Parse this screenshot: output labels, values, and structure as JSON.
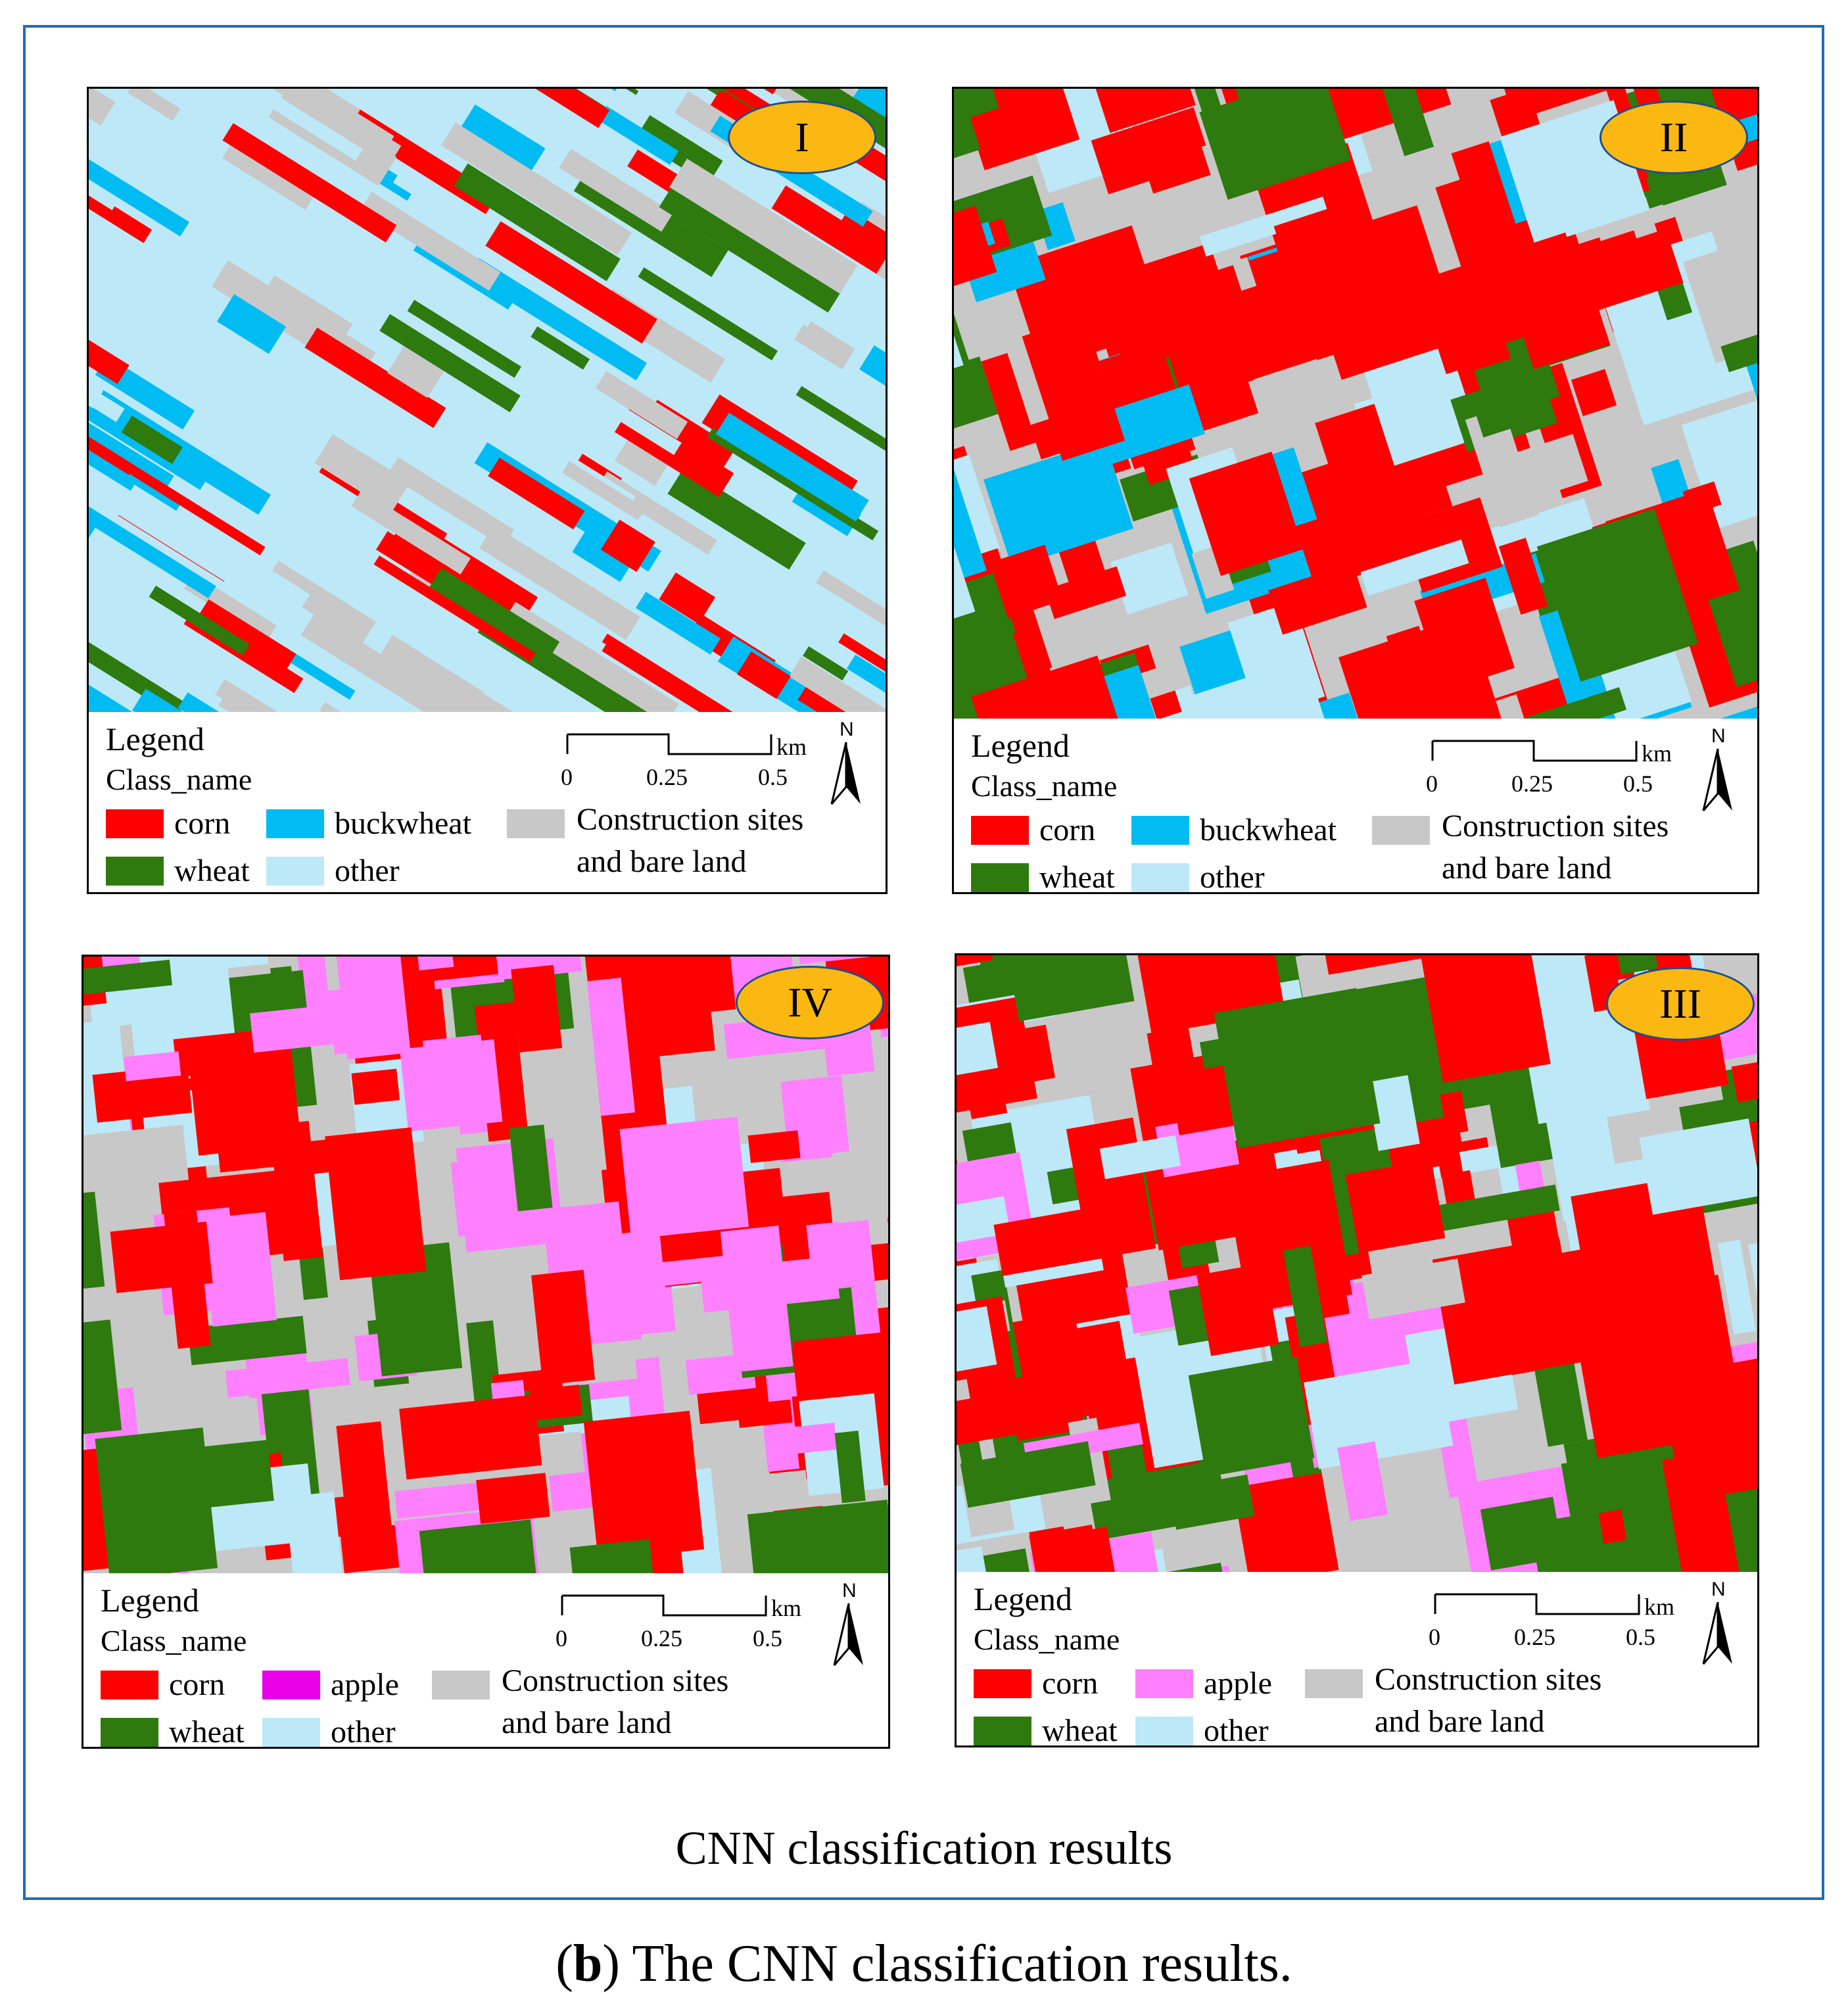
{
  "colors": {
    "corn": "#ff0000",
    "wheat": "#2e7a0e",
    "buckwheat": "#00bcf2",
    "other": "#bde8f7",
    "construction": "#c8c8c8",
    "apple": "#ff80ff",
    "apple_legend_iv": "#e800e8",
    "badge_fill": "#fbb812",
    "frame": "#1f6db8"
  },
  "panels": [
    {
      "id": "I",
      "badge": "I",
      "scheme": "buckwheat",
      "legend": {
        "title": "Legend",
        "subtitle": "Class_name",
        "items": [
          {
            "label": "corn",
            "class": "corn"
          },
          {
            "label": "buckwheat",
            "class": "buckwheat"
          },
          {
            "label": "wheat",
            "class": "wheat"
          },
          {
            "label": "other",
            "class": "other"
          }
        ],
        "construction": [
          "Construction sites",
          "and bare land"
        ]
      },
      "scale": {
        "unit": "km",
        "ticks": [
          "0",
          "0.25",
          "0.5"
        ]
      },
      "north": "N"
    },
    {
      "id": "II",
      "badge": "II",
      "scheme": "buckwheat",
      "legend": {
        "title": "Legend",
        "subtitle": "Class_name",
        "items": [
          {
            "label": "corn",
            "class": "corn"
          },
          {
            "label": "buckwheat",
            "class": "buckwheat"
          },
          {
            "label": "wheat",
            "class": "wheat"
          },
          {
            "label": "other",
            "class": "other"
          }
        ],
        "construction": [
          "Construction sites",
          "and bare land"
        ]
      },
      "scale": {
        "unit": "km",
        "ticks": [
          "0",
          "0.25",
          "0.5"
        ]
      },
      "north": "N"
    },
    {
      "id": "IV",
      "badge": "IV",
      "scheme": "apple",
      "legend": {
        "title": "Legend",
        "subtitle": "Class_name",
        "items": [
          {
            "label": "corn",
            "class": "corn"
          },
          {
            "label": "apple",
            "class": "apple_legend_iv"
          },
          {
            "label": "wheat",
            "class": "wheat"
          },
          {
            "label": "other",
            "class": "other"
          }
        ],
        "construction": [
          "Construction sites",
          "and bare land"
        ]
      },
      "scale": {
        "unit": "km",
        "ticks": [
          "0",
          "0.25",
          "0.5"
        ]
      },
      "north": "N"
    },
    {
      "id": "III",
      "badge": "III",
      "scheme": "apple",
      "legend": {
        "title": "Legend",
        "subtitle": "Class_name",
        "items": [
          {
            "label": "corn",
            "class": "corn"
          },
          {
            "label": "apple",
            "class": "apple"
          },
          {
            "label": "wheat",
            "class": "wheat"
          },
          {
            "label": "other",
            "class": "other"
          }
        ],
        "construction": [
          "Construction sites",
          "and bare land"
        ]
      },
      "scale": {
        "unit": "km",
        "ticks": [
          "0",
          "0.25",
          "0.5"
        ]
      },
      "north": "N"
    }
  ],
  "caption": "CNN classification results",
  "subcaption": {
    "open": "(",
    "letter": "b",
    "rest": ") The CNN classification results."
  }
}
